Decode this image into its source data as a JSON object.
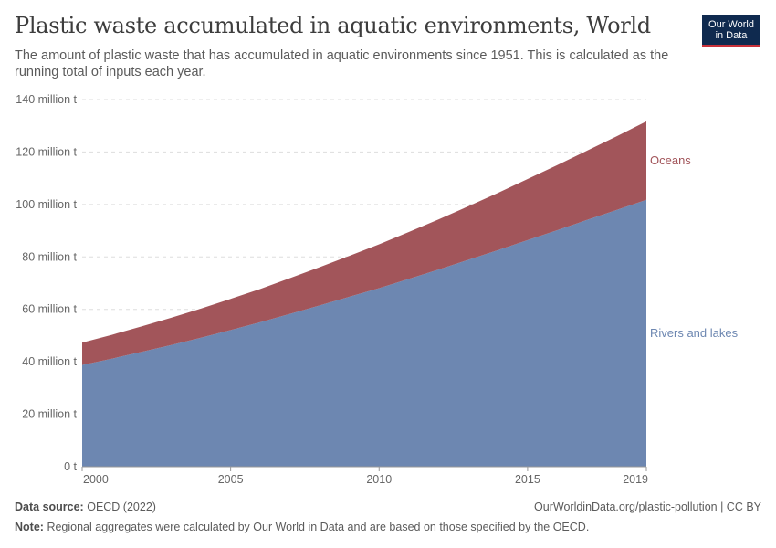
{
  "header": {
    "title": "Plastic waste accumulated in aquatic environments, World",
    "subtitle": "The amount of plastic waste that has accumulated in aquatic environments since 1951. This is calculated as the running total of inputs each year."
  },
  "logo": {
    "line1": "Our World",
    "line2": "in Data",
    "bg_color": "#0f2a4f",
    "accent_color": "#c8313a"
  },
  "footer": {
    "source_label": "Data source:",
    "source_value": "OECD (2022)",
    "url": "OurWorldinData.org/plastic-pollution | CC BY",
    "note_label": "Note:",
    "note_value": "Regional aggregates were calculated by Our World in Data and are based on those specified by the OECD."
  },
  "chart_data": {
    "type": "area",
    "stacked": true,
    "x": [
      2000,
      2001,
      2002,
      2003,
      2004,
      2005,
      2006,
      2007,
      2008,
      2009,
      2010,
      2011,
      2012,
      2013,
      2014,
      2015,
      2016,
      2017,
      2018,
      2019
    ],
    "series": [
      {
        "name": "Rivers and lakes",
        "color": "#6d87b1",
        "values": [
          38.8,
          41.2,
          43.8,
          46.4,
          49.2,
          52.1,
          55.1,
          58.3,
          61.5,
          64.8,
          68.1,
          71.6,
          75.2,
          78.9,
          82.6,
          86.4,
          90.2,
          94.1,
          97.9,
          101.8
        ]
      },
      {
        "name": "Oceans",
        "color": "#a2555a",
        "values": [
          8.5,
          9.1,
          9.7,
          10.4,
          11.1,
          11.9,
          12.7,
          13.6,
          14.6,
          15.6,
          16.7,
          17.9,
          19.1,
          20.4,
          21.8,
          23.3,
          24.8,
          26.4,
          28.1,
          29.9
        ]
      }
    ],
    "ylim": [
      0,
      140
    ],
    "y_ticks": [
      0,
      20,
      40,
      60,
      80,
      100,
      120,
      140
    ],
    "y_tick_labels": [
      "0 t",
      "20 million t",
      "40 million t",
      "60 million t",
      "80 million t",
      "100 million t",
      "120 million t",
      "140 million t"
    ],
    "x_ticks": [
      2000,
      2005,
      2010,
      2015,
      2019
    ],
    "x_tick_labels": [
      "2000",
      "2005",
      "2010",
      "2015",
      "2019"
    ],
    "grid": "horizontal-dashed",
    "legend": "inline-right"
  }
}
